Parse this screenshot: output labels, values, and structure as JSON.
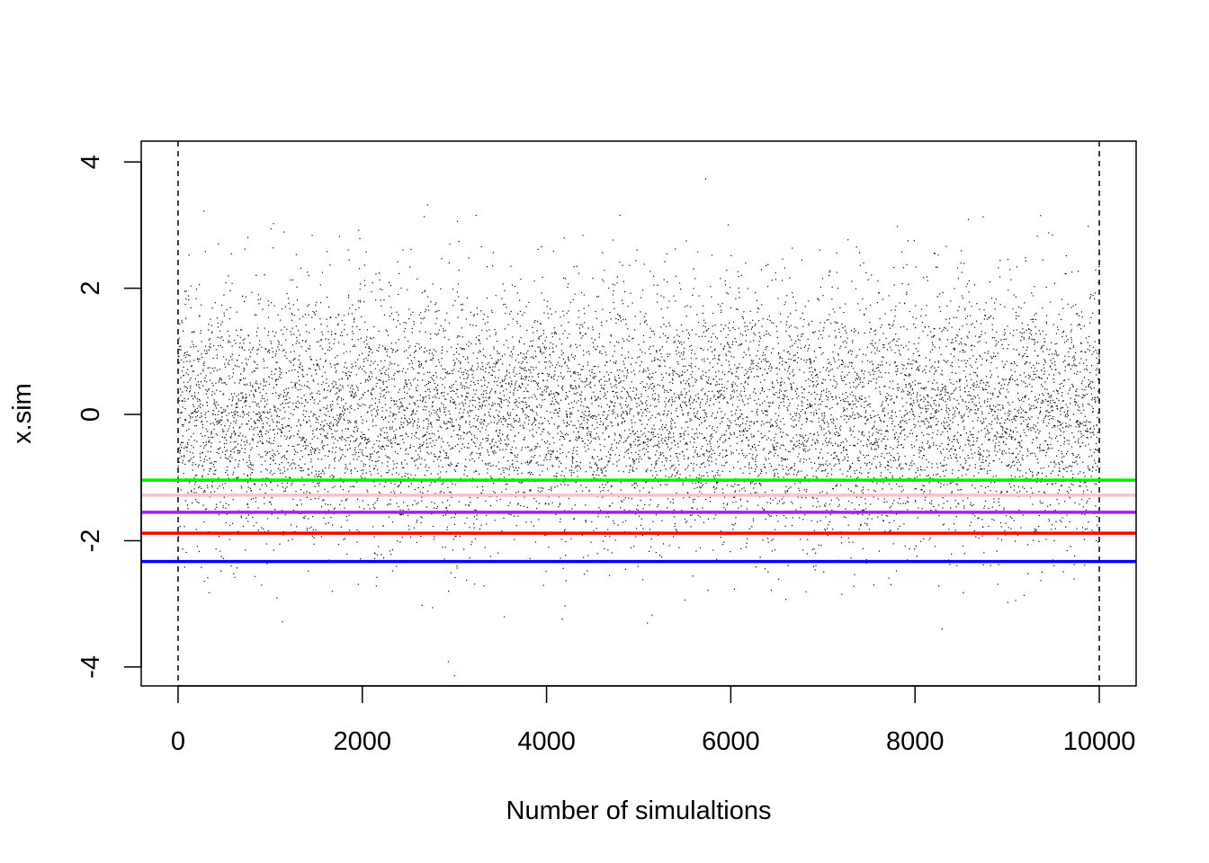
{
  "chart_data": {
    "type": "scatter",
    "title": "",
    "xlabel": "Number of simulaltions",
    "ylabel": "x.sim",
    "xlim": [
      -400,
      10400
    ],
    "ylim": [
      -4.3,
      4.33
    ],
    "x_ticks": [
      0,
      2000,
      4000,
      6000,
      8000,
      10000
    ],
    "x_tick_labels": [
      "0",
      "2000",
      "4000",
      "6000",
      "8000",
      "10000"
    ],
    "y_ticks": [
      -4,
      -2,
      0,
      2,
      4
    ],
    "y_tick_labels": [
      "-4",
      "-2",
      "0",
      "2",
      "4"
    ],
    "n_points": 10000,
    "point_distribution": {
      "mean": 0,
      "sd": 1
    },
    "grid": false,
    "legend": "none",
    "vlines": [
      {
        "x": 0,
        "style": "dashed",
        "color": "#000000"
      },
      {
        "x": 10000,
        "style": "dashed",
        "color": "#000000"
      }
    ],
    "hlines": [
      {
        "y": -1.04,
        "color": "#00ee00"
      },
      {
        "y": -1.28,
        "color": "#ffc0cb"
      },
      {
        "y": -1.55,
        "color": "#a020f0"
      },
      {
        "y": -1.88,
        "color": "#ff0000"
      },
      {
        "y": -2.33,
        "color": "#0000ff"
      }
    ],
    "point_color": "#000000"
  }
}
